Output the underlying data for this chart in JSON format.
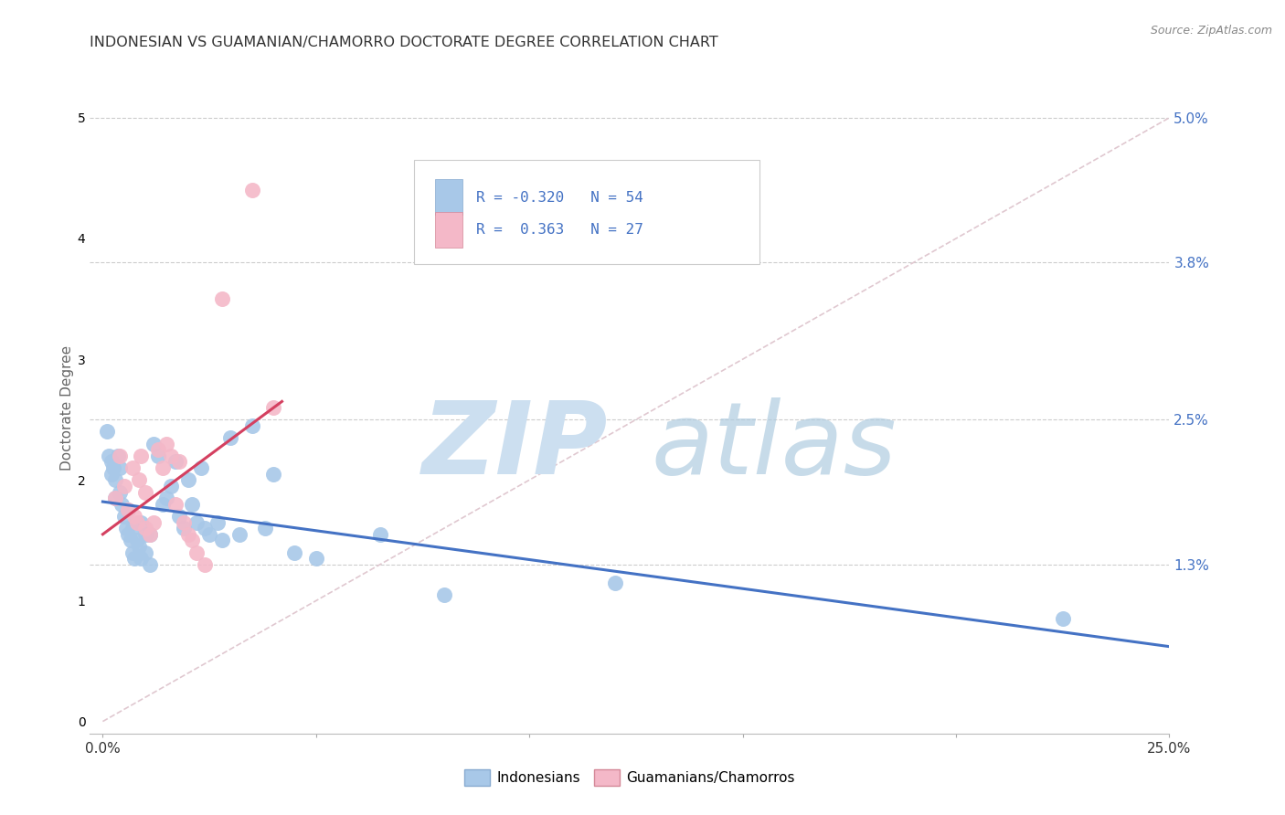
{
  "title": "INDONESIAN VS GUAMANIAN/CHAMORRO DOCTORATE DEGREE CORRELATION CHART",
  "source": "Source: ZipAtlas.com",
  "ylabel_label": "Doctorate Degree",
  "x_ticks": [
    0.0,
    5.0,
    10.0,
    15.0,
    20.0,
    25.0
  ],
  "x_tick_labels": [
    "0.0%",
    "",
    "",
    "",
    "",
    "25.0%"
  ],
  "y_ticks": [
    0.0,
    1.3,
    2.5,
    3.8,
    5.0
  ],
  "y_tick_labels": [
    "",
    "1.3%",
    "2.5%",
    "3.8%",
    "5.0%"
  ],
  "xlim": [
    -0.3,
    25.0
  ],
  "ylim": [
    -0.1,
    5.3
  ],
  "bg_color": "#ffffff",
  "grid_color": "#cccccc",
  "indonesian_color": "#a8c8e8",
  "guamanian_color": "#f4b8c8",
  "indonesian_line_color": "#4472c4",
  "guamanian_line_color": "#d44060",
  "diagonal_color": "#cccccc",
  "legend_R_color": "#4472c4",
  "R_indonesian": -0.32,
  "N_indonesian": 54,
  "R_guamanian": 0.363,
  "N_guamanian": 27,
  "indonesian_points": [
    [
      0.1,
      2.4
    ],
    [
      0.15,
      2.2
    ],
    [
      0.2,
      2.15
    ],
    [
      0.2,
      2.05
    ],
    [
      0.25,
      2.1
    ],
    [
      0.3,
      2.0
    ],
    [
      0.3,
      1.85
    ],
    [
      0.35,
      2.2
    ],
    [
      0.4,
      2.1
    ],
    [
      0.4,
      1.9
    ],
    [
      0.45,
      1.8
    ],
    [
      0.5,
      1.7
    ],
    [
      0.55,
      1.6
    ],
    [
      0.6,
      1.75
    ],
    [
      0.6,
      1.55
    ],
    [
      0.65,
      1.5
    ],
    [
      0.7,
      1.6
    ],
    [
      0.7,
      1.4
    ],
    [
      0.75,
      1.35
    ],
    [
      0.8,
      1.5
    ],
    [
      0.85,
      1.45
    ],
    [
      0.9,
      1.65
    ],
    [
      0.9,
      1.35
    ],
    [
      1.0,
      1.55
    ],
    [
      1.0,
      1.4
    ],
    [
      1.1,
      1.55
    ],
    [
      1.1,
      1.3
    ],
    [
      1.2,
      2.3
    ],
    [
      1.3,
      2.2
    ],
    [
      1.4,
      1.8
    ],
    [
      1.5,
      1.85
    ],
    [
      1.6,
      1.95
    ],
    [
      1.7,
      2.15
    ],
    [
      1.8,
      1.7
    ],
    [
      1.9,
      1.6
    ],
    [
      2.0,
      2.0
    ],
    [
      2.1,
      1.8
    ],
    [
      2.2,
      1.65
    ],
    [
      2.3,
      2.1
    ],
    [
      2.4,
      1.6
    ],
    [
      2.5,
      1.55
    ],
    [
      2.7,
      1.65
    ],
    [
      2.8,
      1.5
    ],
    [
      3.0,
      2.35
    ],
    [
      3.2,
      1.55
    ],
    [
      3.5,
      2.45
    ],
    [
      3.8,
      1.6
    ],
    [
      4.0,
      2.05
    ],
    [
      4.5,
      1.4
    ],
    [
      5.0,
      1.35
    ],
    [
      6.5,
      1.55
    ],
    [
      8.0,
      1.05
    ],
    [
      12.0,
      1.15
    ],
    [
      22.5,
      0.85
    ]
  ],
  "guamanian_points": [
    [
      0.3,
      1.85
    ],
    [
      0.4,
      2.2
    ],
    [
      0.5,
      1.95
    ],
    [
      0.6,
      1.75
    ],
    [
      0.7,
      2.1
    ],
    [
      0.75,
      1.7
    ],
    [
      0.8,
      1.65
    ],
    [
      0.85,
      2.0
    ],
    [
      0.9,
      2.2
    ],
    [
      1.0,
      1.9
    ],
    [
      1.0,
      1.6
    ],
    [
      1.1,
      1.55
    ],
    [
      1.2,
      1.65
    ],
    [
      1.3,
      2.25
    ],
    [
      1.4,
      2.1
    ],
    [
      1.5,
      2.3
    ],
    [
      1.6,
      2.2
    ],
    [
      1.7,
      1.8
    ],
    [
      1.8,
      2.15
    ],
    [
      1.9,
      1.65
    ],
    [
      2.0,
      1.55
    ],
    [
      2.1,
      1.5
    ],
    [
      2.2,
      1.4
    ],
    [
      2.4,
      1.3
    ],
    [
      2.8,
      3.5
    ],
    [
      3.5,
      4.4
    ],
    [
      4.0,
      2.6
    ]
  ],
  "ind_trend_x": [
    0.0,
    25.0
  ],
  "ind_trend_y": [
    1.82,
    0.62
  ],
  "gua_trend_x": [
    0.0,
    4.2
  ],
  "gua_trend_y": [
    1.55,
    2.65
  ]
}
